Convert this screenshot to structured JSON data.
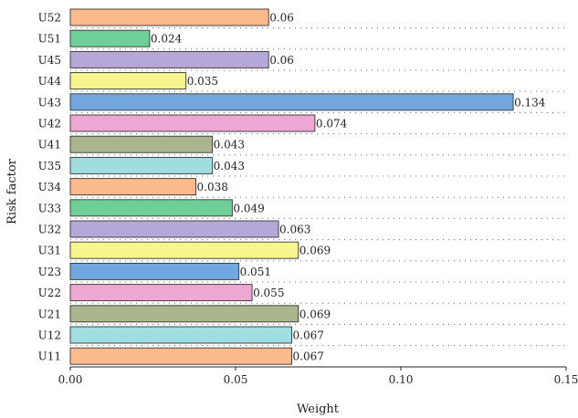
{
  "chart_data": {
    "type": "bar",
    "orientation": "horizontal",
    "categories": [
      "U52",
      "U51",
      "U45",
      "U44",
      "U43",
      "U42",
      "U41",
      "U35",
      "U34",
      "U33",
      "U32",
      "U31",
      "U23",
      "U22",
      "U21",
      "U12",
      "U11"
    ],
    "values": [
      0.06,
      0.024,
      0.06,
      0.035,
      0.134,
      0.074,
      0.043,
      0.043,
      0.038,
      0.049,
      0.063,
      0.069,
      0.051,
      0.055,
      0.069,
      0.067,
      0.067
    ],
    "value_labels": [
      "0.06",
      "0.024",
      "0.06",
      "0.035",
      "0.134",
      "0.074",
      "0.043",
      "0.043",
      "0.038",
      "0.049",
      "0.063",
      "0.069",
      "0.051",
      "0.055",
      "0.069",
      "0.067",
      "0.067"
    ],
    "title": "",
    "xlabel": "Weight",
    "ylabel": "Risk factor",
    "xlim": [
      0,
      0.15
    ],
    "xticks": [
      0,
      0.05,
      0.1,
      0.15
    ],
    "xtick_labels": [
      "0.00",
      "0.05",
      "0.10",
      "0.15"
    ],
    "grid": "dotted horizontal",
    "legend": "none",
    "colors": [
      "#FDBA8C",
      "#9FDDE0",
      "#A8B58F",
      "#EDA7D2",
      "#72A7E0",
      "#F7F58E",
      "#B5A7D7",
      "#6FCF97"
    ]
  }
}
